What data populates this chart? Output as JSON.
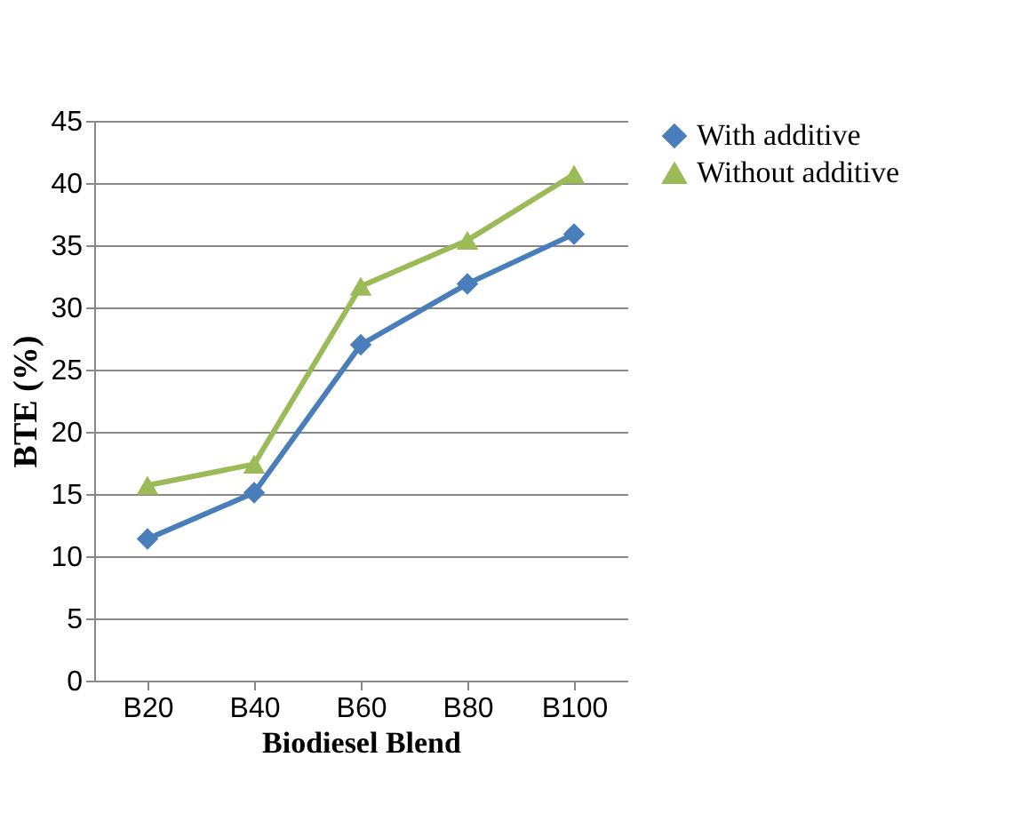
{
  "chart_data": {
    "type": "line",
    "xlabel": "Biodiesel Blend",
    "ylabel": "BTE (%)",
    "categories": [
      "B20",
      "B40",
      "B60",
      "B80",
      "B100"
    ],
    "series": [
      {
        "name": "With additive",
        "color": "#4a7ebb",
        "marker": "diamond",
        "values": [
          11.4,
          15.1,
          27,
          31.9,
          35.9
        ]
      },
      {
        "name": "Without additive",
        "color": "#9bbb59",
        "marker": "triangle",
        "values": [
          15.7,
          17.4,
          31.7,
          35.4,
          40.7
        ]
      }
    ],
    "ylim": [
      0,
      45
    ],
    "yticks": [
      0,
      5,
      10,
      15,
      20,
      25,
      30,
      35,
      40,
      45
    ],
    "grid": "y",
    "legend": "right"
  }
}
